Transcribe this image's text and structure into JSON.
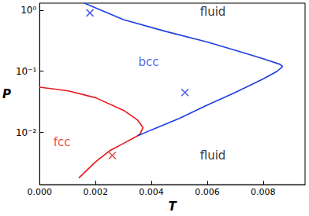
{
  "chart_data": {
    "type": "line",
    "x_label": "T",
    "y_label": "P",
    "log": "y",
    "grid": false,
    "xlim": [
      0,
      0.0095
    ],
    "xticks": [
      {
        "value": 0,
        "label": "0.000"
      },
      {
        "value": 0.002,
        "label": "0.002"
      },
      {
        "value": 0.004,
        "label": "0.004"
      },
      {
        "value": 0.006,
        "label": "0.006"
      },
      {
        "value": 0.008,
        "label": "0.008"
      }
    ],
    "ylim": [
      0.0014,
      1.3
    ],
    "yticks": [
      {
        "value": 0.01,
        "label": "10⁻²"
      },
      {
        "value": 0.1,
        "label": "10⁻¹"
      },
      {
        "value": 1,
        "label": "10⁰"
      }
    ],
    "series": [
      {
        "type": "line",
        "color": "#e8191a",
        "line_style": "solid",
        "x": [
          0,
          0.001,
          0.002,
          0.003,
          0.0035,
          0.0037,
          0.0036,
          0.0035,
          0.003,
          0.0025,
          0.002,
          0.0016,
          0.0014
        ],
        "values": [
          0.055,
          0.048,
          0.037,
          0.023,
          0.016,
          0.012,
          0.0095,
          0.0088,
          0.0066,
          0.005,
          0.0033,
          0.0022,
          0.0018
        ]
      },
      {
        "type": "line",
        "color": "#1f3fe0",
        "line_style": "solid",
        "x": [
          0.0016,
          0.003,
          0.0045,
          0.006,
          0.007,
          0.008,
          0.0086,
          0.0087,
          0.0085,
          0.008,
          0.007,
          0.006,
          0.005,
          0.004,
          0.0035
        ],
        "values": [
          1.3,
          0.7,
          0.45,
          0.3,
          0.22,
          0.16,
          0.13,
          0.12,
          0.1,
          0.075,
          0.045,
          0.028,
          0.017,
          0.011,
          0.0088
        ]
      },
      {
        "type": "scatter",
        "color": "#1f3fe0",
        "marker": "x",
        "x": [
          0.0018,
          0.0052
        ],
        "values": [
          0.9,
          0.045
        ]
      },
      {
        "type": "scatter",
        "color": "#e8191a",
        "marker": "x",
        "x": [
          0.0026
        ],
        "values": [
          0.0042
        ]
      }
    ],
    "annotations": [
      {
        "text": "fluid",
        "x": 0.0062,
        "y": 0.95,
        "color": "#000000"
      },
      {
        "text": "bcc",
        "x": 0.0039,
        "y": 0.14,
        "color": "#1f3fe0"
      },
      {
        "text": "fcc",
        "x": 0.0008,
        "y": 0.007,
        "color": "#e8191a"
      },
      {
        "text": "fluid",
        "x": 0.0062,
        "y": 0.0042,
        "color": "#000000"
      }
    ]
  }
}
